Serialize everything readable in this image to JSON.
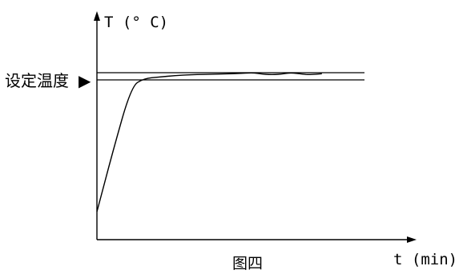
{
  "chart_data": {
    "type": "line",
    "title": "",
    "caption": "图四",
    "ylabel": "T (° C)",
    "xlabel": "t (min)",
    "setpoint_label": "设定温度",
    "setpoint_marker": "▶",
    "grid": false,
    "legend": "none",
    "axis_values_shown": false,
    "setpoint_band": {
      "lower": 0.0,
      "upper": 1.0
    },
    "curve": {
      "description": "temperature rise approaching setpoint then oscillating within band",
      "points_normalized": [
        [
          0.0,
          -1.0
        ],
        [
          0.05,
          -0.55
        ],
        [
          0.11,
          -0.05
        ],
        [
          0.15,
          0.2
        ],
        [
          0.2,
          0.4
        ],
        [
          0.25,
          0.6
        ],
        [
          0.3,
          0.72
        ],
        [
          0.38,
          0.8
        ],
        [
          0.45,
          0.88
        ],
        [
          0.5,
          1.0
        ],
        [
          0.52,
          0.85
        ],
        [
          0.56,
          0.7
        ],
        [
          0.6,
          0.85
        ],
        [
          0.62,
          1.0
        ],
        [
          0.66,
          0.8
        ],
        [
          0.68,
          0.72
        ],
        [
          0.72,
          0.85
        ]
      ]
    },
    "colors": {
      "line": "#000000",
      "background": "#ffffff"
    }
  }
}
